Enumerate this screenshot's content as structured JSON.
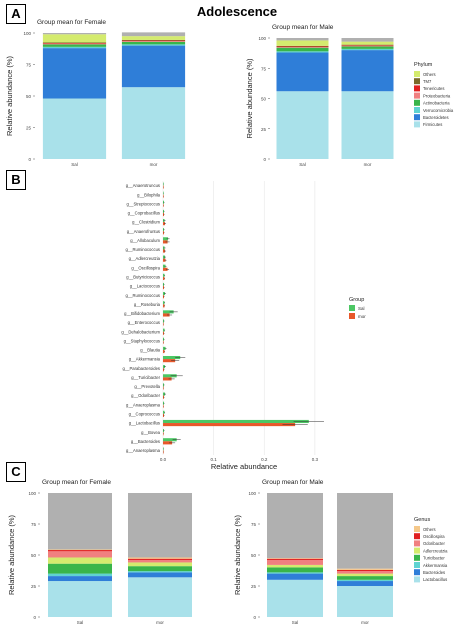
{
  "figure_title": "Adolescence",
  "panel_labels": [
    "A",
    "B",
    "C"
  ],
  "chart_data": [
    {
      "panel": "A",
      "type": "bar",
      "stacked": true,
      "title": "Group mean for Female",
      "xlabel": "",
      "ylabel": "Relative abundance (%)",
      "categories": [
        "Sal",
        "mor"
      ],
      "ylim": [
        0,
        100
      ],
      "yticks": [
        0,
        25,
        50,
        75,
        100
      ],
      "series": [
        {
          "name": "Firmicutes",
          "color": "#a9e1ea",
          "values": [
            48,
            57
          ]
        },
        {
          "name": "Bacteroidetes",
          "color": "#2f7ed8",
          "values": [
            40,
            33
          ]
        },
        {
          "name": "Verrucomicrobia",
          "color": "#5fd3d1",
          "values": [
            1,
            1
          ]
        },
        {
          "name": "Actinobacteria",
          "color": "#39b54a",
          "values": [
            2,
            2
          ]
        },
        {
          "name": "Proteobacteria",
          "color": "#f08080",
          "values": [
            0.5,
            0.5
          ]
        },
        {
          "name": "Tenericutes",
          "color": "#e02020",
          "values": [
            0.5,
            0.5
          ]
        },
        {
          "name": "TM7",
          "color": "#7a6a2a",
          "values": [
            0.5,
            0.5
          ]
        },
        {
          "name": "Others",
          "color": "#d4eb6e",
          "values": [
            6.5,
            3
          ]
        },
        {
          "name": "",
          "color": "#b0b0b0",
          "values": [
            1,
            3
          ]
        }
      ]
    },
    {
      "panel": "A",
      "type": "bar",
      "stacked": true,
      "title": "Group mean for Male",
      "xlabel": "",
      "ylabel": "Relative abundance (%)",
      "categories": [
        "Sal",
        "mor"
      ],
      "ylim": [
        0,
        100
      ],
      "yticks": [
        0,
        25,
        50,
        75,
        100
      ],
      "legend": {
        "title": "Phylum",
        "position": "right",
        "entries": [
          "Others",
          "TM7",
          "Tenericutes",
          "Proteobacteria",
          "Actinobacteria",
          "Verrucomicrobia",
          "Bacteroidetes",
          "Firmicutes"
        ]
      },
      "series": [
        {
          "name": "Firmicutes",
          "color": "#a9e1ea",
          "values": [
            56,
            56
          ]
        },
        {
          "name": "Bacteroidetes",
          "color": "#2f7ed8",
          "values": [
            32,
            34
          ]
        },
        {
          "name": "Verrucomicrobia",
          "color": "#5fd3d1",
          "values": [
            1,
            1
          ]
        },
        {
          "name": "Actinobacteria",
          "color": "#39b54a",
          "values": [
            3,
            2
          ]
        },
        {
          "name": "Proteobacteria",
          "color": "#f08080",
          "values": [
            0.5,
            0.5
          ]
        },
        {
          "name": "Tenericutes",
          "color": "#e02020",
          "values": [
            0.5,
            0.5
          ]
        },
        {
          "name": "TM7",
          "color": "#7a6a2a",
          "values": [
            0.5,
            0.5
          ]
        },
        {
          "name": "Others",
          "color": "#d4eb6e",
          "values": [
            4.5,
            2.5
          ]
        },
        {
          "name": "",
          "color": "#b0b0b0",
          "values": [
            2,
            3
          ]
        }
      ]
    },
    {
      "panel": "B",
      "type": "bar",
      "orientation": "horizontal",
      "xlabel": "Relative abundance",
      "ylabel": "",
      "xlim": [
        0,
        0.32
      ],
      "xticks": [
        0.0,
        0.1,
        0.2,
        0.3
      ],
      "xtick_labels": [
        "0.0",
        "0.1",
        "0.2",
        "0.3"
      ],
      "grid": true,
      "legend": {
        "title": "Group",
        "position": "right",
        "entries": [
          "Sal",
          "mor"
        ]
      },
      "categories": [
        "g__Anaerotruncus",
        "g__Bilophila",
        "g__Streptococcus",
        "g__Coprobacillus",
        "g__Clostridium",
        "g__Anaerofruntus",
        "g__Allobaculum",
        "g__Ruminococcus",
        "g__Adlercreutzia",
        "g__Oscillospira",
        "g__Butyricicoccus",
        "g__Lactococcus",
        "g__Ruminococcus",
        "g__Roseburia",
        "g__Bifidobacterium",
        "g__Enterococcus",
        "g__Dehalobacterium",
        "g__Staphylococcus",
        "g__Blautia",
        "g__Akkermansia",
        "g__Parabacteroides",
        "g__Turicibacter",
        "g__Prevotella",
        "g__Odoribacter",
        "g__Anaeroplasma",
        "g__Coprococcus",
        "g__Lactobacillus",
        "g__Bovea",
        "g__Bacteroides",
        "g__Anaeroplasma"
      ],
      "series": [
        {
          "name": "Sal",
          "color": "#4cc764",
          "values": [
            0.001,
            0.001,
            0.002,
            0.002,
            0.003,
            0.002,
            0.01,
            0.003,
            0.004,
            0.005,
            0.003,
            0.002,
            0.004,
            0.003,
            0.021,
            0.002,
            0.003,
            0.002,
            0.005,
            0.034,
            0.004,
            0.027,
            0.002,
            0.004,
            0.002,
            0.003,
            0.288,
            0.002,
            0.027,
            0.001
          ],
          "errors": [
            0.0005,
            0.0005,
            0.001,
            0.001,
            0.002,
            0.001,
            0.003,
            0.002,
            0.002,
            0.002,
            0.001,
            0.001,
            0.002,
            0.001,
            0.008,
            0.001,
            0.001,
            0.001,
            0.002,
            0.01,
            0.002,
            0.012,
            0.001,
            0.002,
            0.001,
            0.001,
            0.03,
            0.001,
            0.008,
            0.0005
          ]
        },
        {
          "name": "mor",
          "color": "#e8582a",
          "values": [
            0.001,
            0.001,
            0.001,
            0.002,
            0.004,
            0.002,
            0.009,
            0.004,
            0.005,
            0.009,
            0.003,
            0.002,
            0.002,
            0.003,
            0.013,
            0.001,
            0.002,
            0.001,
            0.003,
            0.024,
            0.002,
            0.017,
            0.001,
            0.002,
            0.001,
            0.002,
            0.261,
            0.001,
            0.018,
            0.001
          ],
          "errors": [
            0.0005,
            0.0005,
            0.0005,
            0.001,
            0.002,
            0.001,
            0.004,
            0.002,
            0.002,
            0.003,
            0.001,
            0.001,
            0.001,
            0.001,
            0.005,
            0.0005,
            0.001,
            0.0005,
            0.001,
            0.008,
            0.001,
            0.006,
            0.0005,
            0.001,
            0.0005,
            0.001,
            0.025,
            0.0005,
            0.006,
            0.0005
          ]
        }
      ]
    },
    {
      "panel": "C",
      "type": "bar",
      "stacked": true,
      "title": "Group mean for Female",
      "xlabel": "",
      "ylabel": "Relative abundance (%)",
      "categories": [
        "Sal",
        "mor"
      ],
      "ylim": [
        0,
        100
      ],
      "yticks": [
        0,
        25,
        50,
        75,
        100
      ],
      "series": [
        {
          "name": "Lactobacillus",
          "color": "#a9e1ea",
          "values": [
            29,
            32
          ]
        },
        {
          "name": "Bacteroides",
          "color": "#2f7ed8",
          "values": [
            4,
            4
          ]
        },
        {
          "name": "Akkermansia",
          "color": "#5fd3d1",
          "values": [
            2,
            1
          ]
        },
        {
          "name": "Turicibacter",
          "color": "#39b54a",
          "values": [
            8,
            4
          ]
        },
        {
          "name": "Adlercreutzia",
          "color": "#d4eb6e",
          "values": [
            5,
            3
          ]
        },
        {
          "name": "Odoribacter",
          "color": "#f08080",
          "values": [
            5,
            2
          ]
        },
        {
          "name": "Oscillospira",
          "color": "#e02020",
          "values": [
            1,
            1
          ]
        },
        {
          "name": "Others",
          "color": "#f5c88a",
          "values": [
            0.5,
            1
          ]
        },
        {
          "name": "",
          "color": "#b0b0b0",
          "values": [
            45.5,
            52
          ]
        }
      ]
    },
    {
      "panel": "C",
      "type": "bar",
      "stacked": true,
      "title": "Group mean for Male",
      "xlabel": "",
      "ylabel": "Relative abundance (%)",
      "categories": [
        "Sal",
        "mor"
      ],
      "ylim": [
        0,
        100
      ],
      "yticks": [
        0,
        25,
        50,
        75,
        100
      ],
      "legend": {
        "title": "Genus",
        "position": "right",
        "entries": [
          "Others",
          "Oscillospira",
          "Odoribacter",
          "Adlercreutzia",
          "Turicibacter",
          "Akkermansia",
          "Bacteroides",
          "Lactobacillus"
        ]
      },
      "series": [
        {
          "name": "Lactobacillus",
          "color": "#a9e1ea",
          "values": [
            30,
            25
          ]
        },
        {
          "name": "Bacteroides",
          "color": "#2f7ed8",
          "values": [
            5,
            4
          ]
        },
        {
          "name": "Akkermansia",
          "color": "#5fd3d1",
          "values": [
            1,
            1
          ]
        },
        {
          "name": "Turicibacter",
          "color": "#39b54a",
          "values": [
            4,
            3
          ]
        },
        {
          "name": "Adlercreutzia",
          "color": "#d4eb6e",
          "values": [
            2,
            2
          ]
        },
        {
          "name": "Odoribacter",
          "color": "#f08080",
          "values": [
            4,
            2
          ]
        },
        {
          "name": "Oscillospira",
          "color": "#e02020",
          "values": [
            1,
            1
          ]
        },
        {
          "name": "Others",
          "color": "#f5c88a",
          "values": [
            0.5,
            1
          ]
        },
        {
          "name": "",
          "color": "#b0b0b0",
          "values": [
            52.5,
            61
          ]
        }
      ]
    }
  ]
}
